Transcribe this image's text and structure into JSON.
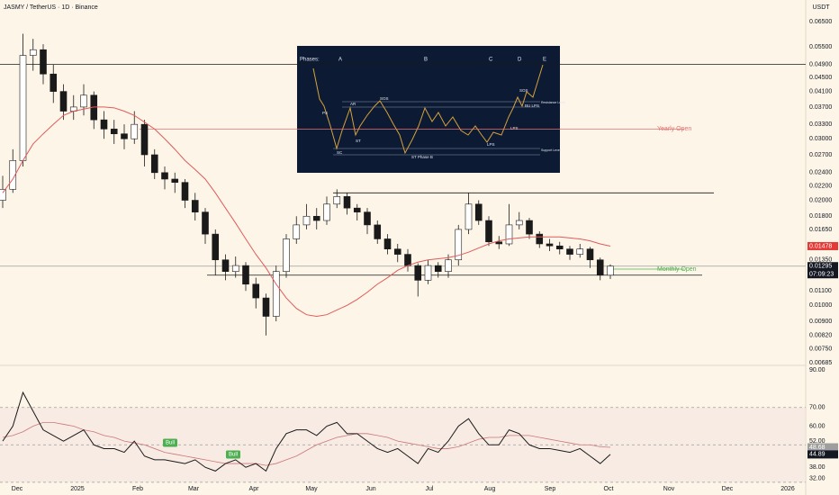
{
  "header": {
    "symbol": "JASMY / TetherUS · 1D · Binance",
    "currency": "USDT"
  },
  "chart_data": [
    {
      "type": "candlestick",
      "log": true,
      "grid": false,
      "up_color": "#ffffff",
      "down_color": "#1a1a1a",
      "edge_color": "#1a1a1a",
      "open": [
        0.02,
        0.0215,
        0.026,
        0.052,
        0.054,
        0.046,
        0.041,
        0.036,
        0.037,
        0.04,
        0.034,
        0.032,
        0.031,
        0.03,
        0.033,
        0.027,
        0.024,
        0.023,
        0.0225,
        0.02,
        0.0185,
        0.016,
        0.0135,
        0.0125,
        0.013,
        0.0115,
        0.0105,
        0.0093,
        0.0125,
        0.0155,
        0.017,
        0.018,
        0.0175,
        0.0195,
        0.0205,
        0.019,
        0.0185,
        0.017,
        0.0155,
        0.0145,
        0.014,
        0.013,
        0.0118,
        0.013,
        0.0125,
        0.0135,
        0.0165,
        0.0195,
        0.0175,
        0.0152,
        0.015,
        0.017,
        0.0175,
        0.016,
        0.015,
        0.0148,
        0.0145,
        0.014,
        0.0145,
        0.0135,
        0.0122
      ],
      "high": [
        0.0235,
        0.028,
        0.06,
        0.058,
        0.056,
        0.049,
        0.043,
        0.04,
        0.043,
        0.041,
        0.036,
        0.034,
        0.033,
        0.036,
        0.034,
        0.028,
        0.025,
        0.024,
        0.023,
        0.021,
        0.019,
        0.0165,
        0.014,
        0.0138,
        0.0133,
        0.012,
        0.0108,
        0.013,
        0.016,
        0.018,
        0.0195,
        0.019,
        0.0205,
        0.0215,
        0.021,
        0.0195,
        0.019,
        0.0175,
        0.016,
        0.015,
        0.0145,
        0.0132,
        0.0135,
        0.0133,
        0.014,
        0.017,
        0.021,
        0.02,
        0.018,
        0.0158,
        0.0195,
        0.0185,
        0.0178,
        0.0163,
        0.0155,
        0.0152,
        0.0148,
        0.015,
        0.0147,
        0.0137,
        0.0131
      ],
      "low": [
        0.019,
        0.021,
        0.025,
        0.047,
        0.043,
        0.038,
        0.034,
        0.034,
        0.035,
        0.032,
        0.03,
        0.029,
        0.028,
        0.029,
        0.025,
        0.023,
        0.0215,
        0.021,
        0.019,
        0.0175,
        0.015,
        0.0122,
        0.0118,
        0.012,
        0.011,
        0.0098,
        0.0082,
        0.009,
        0.012,
        0.015,
        0.0165,
        0.0165,
        0.017,
        0.019,
        0.0182,
        0.0175,
        0.016,
        0.015,
        0.014,
        0.0133,
        0.0125,
        0.0106,
        0.0115,
        0.012,
        0.012,
        0.013,
        0.016,
        0.017,
        0.0148,
        0.0145,
        0.0148,
        0.0165,
        0.0155,
        0.0146,
        0.0143,
        0.014,
        0.0135,
        0.0137,
        0.0128,
        0.0118,
        0.0119
      ],
      "close": [
        0.0215,
        0.026,
        0.052,
        0.054,
        0.046,
        0.041,
        0.036,
        0.037,
        0.04,
        0.034,
        0.032,
        0.031,
        0.03,
        0.033,
        0.027,
        0.024,
        0.023,
        0.0225,
        0.02,
        0.0185,
        0.016,
        0.0135,
        0.0125,
        0.013,
        0.0115,
        0.0105,
        0.0093,
        0.0125,
        0.0155,
        0.017,
        0.018,
        0.0175,
        0.0195,
        0.0205,
        0.019,
        0.0185,
        0.017,
        0.0155,
        0.0145,
        0.014,
        0.013,
        0.0118,
        0.013,
        0.0125,
        0.0135,
        0.0165,
        0.0195,
        0.0175,
        0.0152,
        0.015,
        0.017,
        0.0175,
        0.016,
        0.015,
        0.0148,
        0.0145,
        0.014,
        0.0145,
        0.0135,
        0.0122,
        0.01295
      ],
      "ma": {
        "color": "#e05a5a",
        "values": [
          0.021,
          0.023,
          0.026,
          0.029,
          0.031,
          0.033,
          0.035,
          0.036,
          0.0365,
          0.037,
          0.037,
          0.0368,
          0.036,
          0.035,
          0.0335,
          0.032,
          0.03,
          0.028,
          0.026,
          0.0245,
          0.023,
          0.021,
          0.019,
          0.0172,
          0.0155,
          0.014,
          0.0128,
          0.0115,
          0.0105,
          0.0098,
          0.0094,
          0.0093,
          0.0094,
          0.0097,
          0.01,
          0.0104,
          0.0109,
          0.0115,
          0.012,
          0.0126,
          0.013,
          0.0133,
          0.0135,
          0.0136,
          0.0137,
          0.0139,
          0.0142,
          0.0146,
          0.015,
          0.0153,
          0.0155,
          0.0156,
          0.0157,
          0.0157,
          0.0157,
          0.0157,
          0.0156,
          0.0155,
          0.0153,
          0.015,
          0.01478
        ]
      },
      "ylim": [
        0.00685,
        0.065
      ],
      "yticks": [
        {
          "value": 0.065,
          "label": "0.06500"
        },
        {
          "value": 0.055,
          "label": "0.05500"
        },
        {
          "value": 0.049,
          "label": "0.04900"
        },
        {
          "value": 0.045,
          "label": "0.04500"
        },
        {
          "value": 0.041,
          "label": "0.04100"
        },
        {
          "value": 0.037,
          "label": "0.03700"
        },
        {
          "value": 0.033,
          "label": "0.03300"
        },
        {
          "value": 0.03,
          "label": "0.03000"
        },
        {
          "value": 0.027,
          "label": "0.02700"
        },
        {
          "value": 0.024,
          "label": "0.02400"
        },
        {
          "value": 0.022,
          "label": "0.02200"
        },
        {
          "value": 0.02,
          "label": "0.02000"
        },
        {
          "value": 0.018,
          "label": "0.01800"
        },
        {
          "value": 0.0165,
          "label": "0.01650"
        },
        {
          "value": 0.0135,
          "label": "0.01350"
        },
        {
          "value": 0.011,
          "label": "0.01100"
        },
        {
          "value": 0.01,
          "label": "0.01000"
        },
        {
          "value": 0.009,
          "label": "0.00900"
        },
        {
          "value": 0.0082,
          "label": "0.00820"
        },
        {
          "value": 0.0075,
          "label": "0.00750"
        },
        {
          "value": 0.00685,
          "label": "0.00685"
        }
      ],
      "levels": [
        {
          "value": 0.049,
          "color": "#1a1a1a"
        },
        {
          "value": 0.032,
          "color": "#e57373",
          "label": "Yearly Open"
        },
        {
          "value": 0.021,
          "color": "#1a1a1a"
        },
        {
          "value": 0.0127,
          "color": "#4caf50",
          "label": "Monthly Open"
        },
        {
          "value": 0.0122,
          "color": "#1a1a1a"
        },
        {
          "value": 0.01295,
          "color": "#9e9e9e"
        }
      ],
      "markers": [
        {
          "value": 0.01478,
          "label": "0.01478",
          "color": "#e53935"
        },
        {
          "value": 0.01295,
          "label": "0.01295",
          "color": "#131722",
          "sub": "07:09:23"
        }
      ],
      "xlabels": [
        "Dec",
        "2025",
        "Feb",
        "Mar",
        "Apr",
        "May",
        "Jun",
        "Jul",
        "Aug",
        "Sep",
        "Oct",
        "Nov",
        "Dec",
        "2026"
      ]
    },
    {
      "type": "line",
      "color": "#1a1a1a",
      "values": [
        52,
        60,
        78,
        68,
        58,
        55,
        52,
        55,
        58,
        50,
        48,
        48,
        46,
        52,
        44,
        42,
        42,
        41,
        40,
        42,
        38,
        36,
        40,
        42,
        38,
        40,
        36,
        48,
        56,
        58,
        58,
        55,
        60,
        62,
        56,
        56,
        52,
        48,
        46,
        48,
        44,
        40,
        48,
        46,
        52,
        60,
        64,
        56,
        50,
        50,
        58,
        56,
        50,
        48,
        48,
        47,
        46,
        48,
        44,
        40,
        44.89
      ],
      "ma": {
        "color": "#c77",
        "values": [
          54,
          55,
          57,
          60,
          62,
          62,
          61,
          60,
          58,
          57,
          55,
          54,
          52,
          51,
          50,
          48,
          46,
          45,
          44,
          43,
          42,
          41,
          40,
          40,
          40,
          40,
          39,
          40,
          42,
          44,
          47,
          50,
          52,
          54,
          55,
          56,
          56,
          55,
          54,
          52,
          51,
          50,
          49,
          48,
          48,
          49,
          51,
          53,
          54,
          54,
          55,
          55,
          55,
          54,
          53,
          52,
          51,
          50,
          50,
          49,
          48.68
        ]
      },
      "ylim": [
        28,
        92
      ],
      "yticks": [
        {
          "value": 90,
          "label": "90.00"
        },
        {
          "value": 70,
          "label": "70.00"
        },
        {
          "value": 60,
          "label": "60.00"
        },
        {
          "value": 52,
          "label": "52.00"
        },
        {
          "value": 38,
          "label": "38.00"
        },
        {
          "value": 32,
          "label": "32.00"
        }
      ],
      "levels": [
        70,
        50,
        30
      ],
      "markers": [
        {
          "value": 48.68,
          "label": "48.68",
          "color": "#9e9e9e"
        },
        {
          "value": 44.89,
          "label": "44.89",
          "color": "#131722"
        }
      ],
      "annotations": [
        "Bull",
        "Bull"
      ]
    }
  ],
  "inset": {
    "labels": [
      "Phases:",
      "A",
      "B",
      "C",
      "D",
      "E",
      "PS",
      "SC",
      "AR",
      "ST",
      "SOS",
      "ST Phase B",
      "LPS",
      "LPS",
      "BU LPS",
      "SOS",
      "Resistance Level",
      "Support Level"
    ]
  }
}
